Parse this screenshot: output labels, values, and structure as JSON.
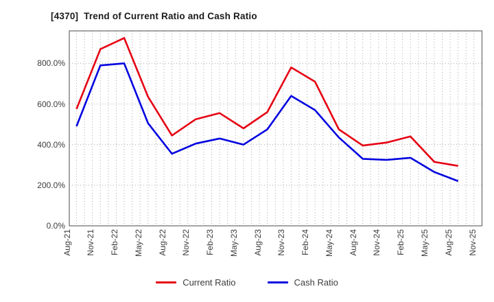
{
  "title": "[4370]  Trend of Current Ratio and Cash Ratio",
  "chart_data": {
    "type": "line",
    "title": "[4370]  Trend of Current Ratio and Cash Ratio",
    "xlabel": "",
    "ylabel": "",
    "unit": "%",
    "categories": [
      "Aug-21",
      "Nov-21",
      "Feb-22",
      "May-22",
      "Aug-22",
      "Nov-22",
      "Feb-23",
      "May-23",
      "Aug-23",
      "Nov-23",
      "Feb-24",
      "May-24",
      "Aug-24",
      "Nov-24",
      "Feb-25",
      "May-25",
      "Aug-25",
      "Nov-25"
    ],
    "series": [
      {
        "name": "Current Ratio",
        "color": "#e60012",
        "values": [
          575,
          870,
          925,
          635,
          445,
          525,
          555,
          480,
          560,
          780,
          710,
          475,
          395,
          410,
          440,
          315,
          295
        ]
      },
      {
        "name": "Cash Ratio",
        "color": "#0000e0",
        "values": [
          490,
          790,
          800,
          505,
          355,
          405,
          430,
          400,
          475,
          640,
          570,
          435,
          330,
          325,
          335,
          265,
          220
        ]
      }
    ],
    "note": "last category Nov-25 has no data points",
    "ylim": [
      0,
      960
    ],
    "yticks": [
      {
        "value": 0,
        "label": "0.0%"
      },
      {
        "value": 200,
        "label": "200.0%"
      },
      {
        "value": 400,
        "label": "400.0%"
      },
      {
        "value": 600,
        "label": "600.0%"
      },
      {
        "value": 800,
        "label": "800.0%"
      }
    ],
    "grid": "dotted gray, vertical line every month, horizontal every 200%",
    "legend_position": "bottom-center",
    "colors": {
      "plot_border": "#737373",
      "gridline": "#a8a8a8",
      "tick_text": "#3c3c3c",
      "title_text": "#1a1a1a",
      "background": "#ffffff"
    }
  }
}
